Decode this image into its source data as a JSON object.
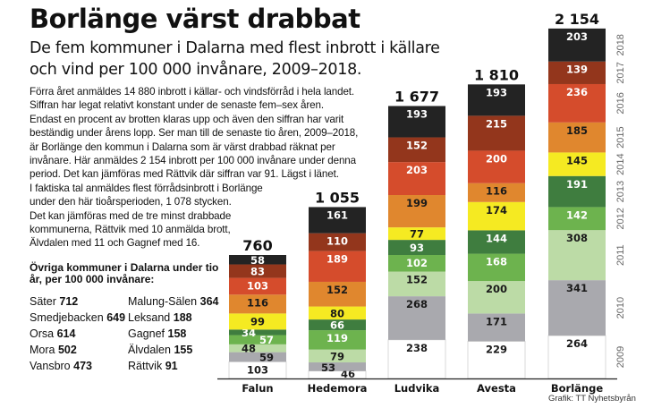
{
  "title": "Borlänge värst drabbat",
  "subtitle": "De fem kommuner i Dalarna med flest inbrott i källare och vind per 100 000 invånare, 2009–2018.",
  "body_lines": [
    "Förra året anmäldes 14 880 inbrott i källar- och vindsförråd i hela landet.",
    "Siffran har legat relativt konstant under de senaste fem–sex åren.",
    "Endast en procent av brotten klaras upp och även den siffran har varit",
    "beständig under årens lopp. Ser man till de senaste tio åren, 2009–2018,",
    "är Borlänge den kommun i Dalarna som är värst drabbad räknat per",
    "invånare. Här anmäldes 2 154 inbrott per 100 000 invånare under denna",
    "period. Det kan jämföras med Rättvik där siffran var 91. Lägst i länet.",
    "I faktiska tal anmäldes flest förrådsinbrott i Borlänge",
    "under den här tioårsperioden, 1 078 stycken.",
    "Det kan jämföras med de tre minst drabbade",
    "kommunerna, Rättvik med 10 anmälda brott,",
    "Älvdalen med 11 och Gagnef med 16."
  ],
  "others": {
    "title": "Övriga kommuner i Dalarna under tio år, per 100 000 invånare:",
    "left": [
      {
        "name": "Säter",
        "value": "712"
      },
      {
        "name": "Smedjebacken",
        "value": "649"
      },
      {
        "name": "Orsa",
        "value": "614"
      },
      {
        "name": "Mora",
        "value": "502"
      },
      {
        "name": "Vansbro",
        "value": "473"
      }
    ],
    "right": [
      {
        "name": "Malung-Sälen",
        "value": "364"
      },
      {
        "name": "Leksand",
        "value": "188"
      },
      {
        "name": "Gagnef",
        "value": "158"
      },
      {
        "name": "Älvdalen",
        "value": "155"
      },
      {
        "name": "Rättvik",
        "value": "91"
      }
    ]
  },
  "credit": "Grafik: TT Nyhetsbyrån",
  "chart_data": {
    "type": "bar",
    "stacked": true,
    "title": "Borlänge värst drabbat",
    "xlabel": "",
    "ylabel": "Inbrott i källare och vind per 100 000 invånare",
    "categories": [
      "Falun",
      "Hedemora",
      "Ludvika",
      "Avesta",
      "Borlänge"
    ],
    "totals": [
      "760",
      "1 055",
      "1 677",
      "1 810",
      "2 154"
    ],
    "legend_placement": "right (year labels beside last bar)",
    "grid": false,
    "series": [
      {
        "name": "2009",
        "color": "#ffffff",
        "label_color": "#1a1a1a",
        "values": [
          103,
          46,
          238,
          229,
          264
        ]
      },
      {
        "name": "2010",
        "color": "#a9a9ae",
        "label_color": "#1a1a1a",
        "values": [
          59,
          53,
          268,
          171,
          341
        ]
      },
      {
        "name": "2011",
        "color": "#bcdba6",
        "label_color": "#1a1a1a",
        "values": [
          48,
          79,
          152,
          200,
          308
        ]
      },
      {
        "name": "2012",
        "color": "#6db34e",
        "label_color": "#ffffff",
        "values": [
          57,
          119,
          102,
          168,
          142
        ]
      },
      {
        "name": "2013",
        "color": "#3f7d3f",
        "label_color": "#ffffff",
        "values": [
          34,
          66,
          93,
          144,
          191
        ]
      },
      {
        "name": "2014",
        "color": "#f5ea22",
        "label_color": "#1a1a1a",
        "values": [
          99,
          80,
          77,
          174,
          145
        ]
      },
      {
        "name": "2015",
        "color": "#e0872e",
        "label_color": "#1a1a1a",
        "values": [
          116,
          152,
          199,
          116,
          185
        ]
      },
      {
        "name": "2016",
        "color": "#d54c2c",
        "label_color": "#ffffff",
        "values": [
          103,
          189,
          203,
          200,
          236
        ]
      },
      {
        "name": "2017",
        "color": "#93361c",
        "label_color": "#ffffff",
        "values": [
          83,
          110,
          152,
          215,
          139
        ]
      },
      {
        "name": "2018",
        "color": "#232323",
        "label_color": "#ffffff",
        "values": [
          58,
          161,
          193,
          193,
          203
        ]
      }
    ],
    "ylim": [
      0,
      2154
    ]
  }
}
